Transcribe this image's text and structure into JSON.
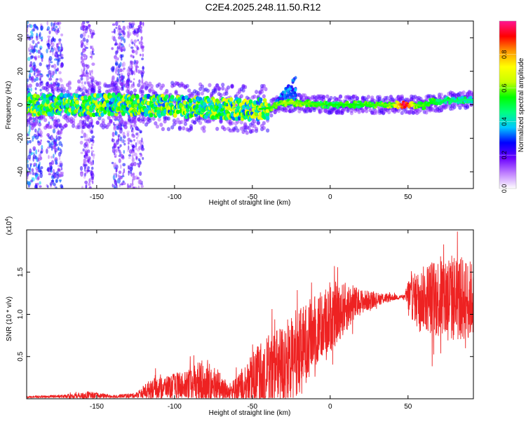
{
  "title": "C2E4.2025.248.11.50.R12",
  "chart_data": [
    {
      "type": "heatmap",
      "name": "spectrogram",
      "xlabel": "Height of straight line (km)",
      "ylabel": "Frequency (Hz)",
      "xlim": [
        -195,
        92
      ],
      "ylim": [
        -50,
        50
      ],
      "xticks": [
        -150,
        -100,
        -50,
        0,
        50
      ],
      "xtick_labels": [
        "-150",
        "-100",
        "-50",
        "0",
        "50"
      ],
      "yticks": [
        -40,
        -20,
        0,
        20,
        40
      ],
      "ytick_labels": [
        "-40",
        "-20",
        "0",
        "20",
        "40"
      ],
      "colorbar": {
        "label": "Normalized spectral amplitude",
        "range": [
          0,
          1
        ],
        "ticks": [
          0.0,
          0.2,
          0.4,
          0.6,
          0.8
        ],
        "tick_labels": [
          "0.0",
          "0.2",
          "0.4",
          "0.6",
          "0.8"
        ],
        "colors": [
          "#ffffff",
          "#c080ff",
          "#6a00ff",
          "#0000ff",
          "#00c8ff",
          "#00ff80",
          "#00ff00",
          "#c8ff00",
          "#ffff00",
          "#ff9900",
          "#ff0000",
          "#ff1493"
        ]
      },
      "ridge": {
        "x": [
          -190,
          -160,
          -130,
          -100,
          -70,
          -50,
          -40,
          -30,
          -20,
          0,
          20,
          40,
          50,
          55,
          60,
          65,
          70,
          75,
          80,
          85,
          92
        ],
        "y": [
          0,
          0,
          0,
          -1,
          -2,
          -3,
          -2,
          1,
          1,
          0,
          0,
          0,
          0,
          0,
          -1,
          2,
          1,
          3,
          2,
          3,
          3
        ]
      },
      "ridge_amplitude": {
        "x": [
          -190,
          -100,
          -60,
          -40,
          -30,
          -20,
          0,
          20,
          40,
          48,
          55,
          70,
          92
        ],
        "y": [
          0.45,
          0.45,
          0.5,
          0.55,
          0.62,
          0.6,
          0.55,
          0.55,
          0.6,
          0.98,
          0.6,
          0.5,
          0.45
        ]
      },
      "noise_columns": [
        {
          "x0": -195,
          "x1": -185,
          "level": 0.3
        },
        {
          "x0": -182,
          "x1": -172,
          "level": 0.25
        },
        {
          "x0": -160,
          "x1": -152,
          "level": 0.2
        },
        {
          "x0": -140,
          "x1": -132,
          "level": 0.25
        },
        {
          "x0": -130,
          "x1": -120,
          "level": 0.2
        }
      ],
      "bump": {
        "x0": -35,
        "x1": -22,
        "y_top": 18
      }
    },
    {
      "type": "line",
      "name": "snr",
      "xlabel": "Height of straight line (km)",
      "ylabel": "SNR (10 * v/v)",
      "scale_label": "(x10",
      "scale_exponent": "4",
      "scale_close": ")",
      "xlim": [
        -195,
        92
      ],
      "ylim": [
        0,
        2.0
      ],
      "xticks": [
        -150,
        -100,
        -50,
        0,
        50
      ],
      "xtick_labels": [
        "-150",
        "-100",
        "-50",
        "0",
        "50"
      ],
      "yticks": [
        0.5,
        1.0,
        1.5
      ],
      "ytick_labels": [
        "0.5",
        "1.0",
        "1.5"
      ],
      "color": "#ee2222",
      "envelope": {
        "x": [
          -195,
          -170,
          -155,
          -150,
          -140,
          -125,
          -120,
          -115,
          -100,
          -90,
          -80,
          -72,
          -65,
          -55,
          -48,
          -40,
          -30,
          -20,
          -10,
          0,
          10,
          20,
          30,
          40,
          48,
          50,
          55,
          65,
          75,
          85,
          92
        ],
        "base": [
          0.02,
          0.03,
          0.03,
          0.04,
          0.03,
          0.04,
          0.08,
          0.12,
          0.15,
          0.18,
          0.2,
          0.15,
          0.08,
          0.12,
          0.2,
          0.3,
          0.4,
          0.55,
          0.8,
          0.95,
          1.08,
          1.15,
          1.18,
          1.2,
          1.21,
          1.2,
          1.2,
          1.2,
          1.2,
          1.18,
          1.18
        ],
        "amp": [
          0.01,
          0.02,
          0.06,
          0.03,
          0.02,
          0.03,
          0.08,
          0.12,
          0.15,
          0.2,
          0.3,
          0.2,
          0.1,
          0.25,
          0.4,
          0.45,
          0.5,
          0.5,
          0.45,
          0.4,
          0.3,
          0.15,
          0.08,
          0.04,
          0.02,
          0.25,
          0.3,
          0.45,
          0.55,
          0.5,
          0.45
        ]
      }
    }
  ]
}
